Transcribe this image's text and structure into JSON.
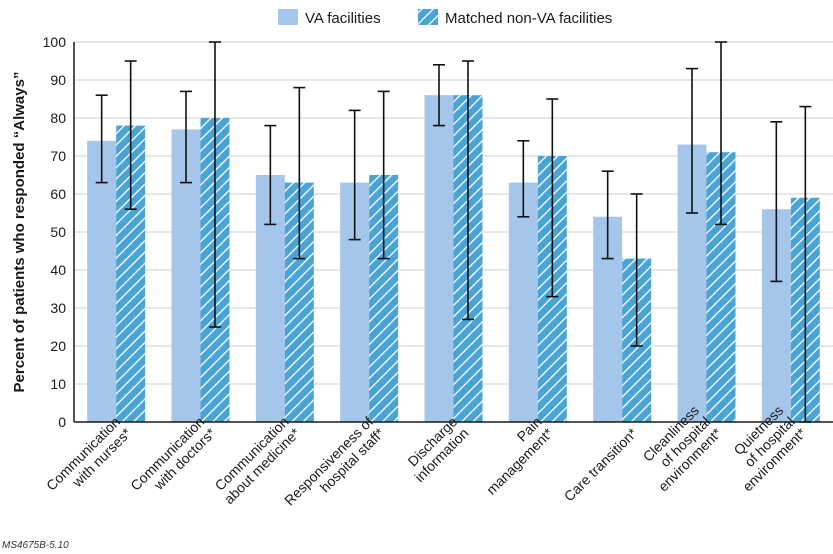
{
  "chart_data": {
    "type": "bar",
    "title": "",
    "xlabel": "",
    "ylabel": "Percent of patients who responded “Always”",
    "ylim": [
      0,
      100
    ],
    "yticks": [
      0,
      10,
      20,
      30,
      40,
      50,
      60,
      70,
      80,
      90,
      100
    ],
    "grid": "horizontal",
    "legend": "top-center",
    "categories": [
      [
        "Communication",
        "with nurses*"
      ],
      [
        "Communication",
        "with doctors*"
      ],
      [
        "Communication",
        "about medicine*"
      ],
      [
        "Responsiveness of",
        "hospital staff*"
      ],
      [
        "Discharge",
        "information"
      ],
      [
        "Pain",
        "management*"
      ],
      [
        "Care transition*"
      ],
      [
        "Cleanliness",
        "of hospital",
        "environment*"
      ],
      [
        "Quietness",
        "of hospital",
        "environment*"
      ]
    ],
    "series": [
      {
        "name": "VA facilities",
        "color": "#a4c6ea",
        "values": [
          74,
          77,
          65,
          63,
          86,
          63,
          54,
          73,
          56
        ],
        "error_low": [
          63,
          63,
          52,
          48,
          78,
          54,
          43,
          55,
          37
        ],
        "error_high": [
          86,
          87,
          78,
          82,
          94,
          74,
          66,
          93,
          79
        ]
      },
      {
        "name": "Matched non-VA facilities",
        "color": "#4aa3d5",
        "pattern": "diagonal-hatch",
        "values": [
          78,
          80,
          63,
          65,
          86,
          70,
          43,
          71,
          59
        ],
        "error_low": [
          56,
          25,
          43,
          43,
          27,
          33,
          20,
          52,
          0
        ],
        "error_high": [
          95,
          100,
          88,
          87,
          95,
          85,
          60,
          100,
          83
        ]
      }
    ]
  },
  "figure_code": "MS4675B-5.10"
}
